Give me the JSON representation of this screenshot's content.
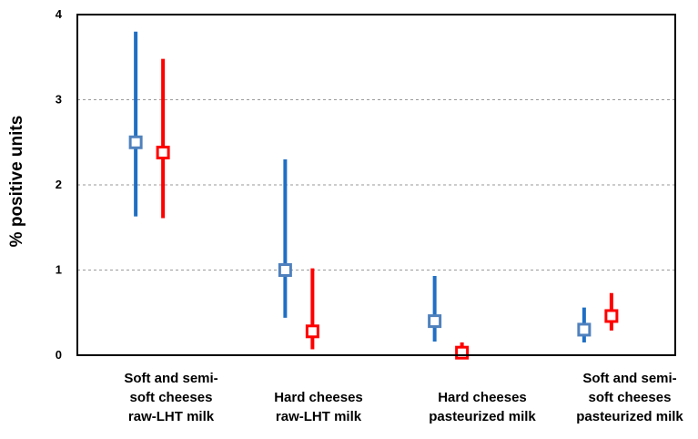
{
  "chart_data": {
    "type": "scatter",
    "subtype": "point-with-interval",
    "title": "",
    "xlabel": "",
    "ylabel": "% positive units",
    "ylim": [
      0,
      4
    ],
    "yticks": [
      0,
      1,
      2,
      3,
      4
    ],
    "grid": "horizontal dashed",
    "legend": "none",
    "categories": [
      "Soft and semi-\nsoft cheeses\nraw-LHT milk",
      "Hard cheeses\nraw-LHT milk",
      "Hard cheeses\npasteurized milk",
      "Soft and semi-\nsoft cheeses\npasteurized milk"
    ],
    "series": [
      {
        "color_line": "#1f6fc4",
        "color_marker": "#4f81bd",
        "points": [
          {
            "value": 2.5,
            "low": 1.63,
            "high": 3.8
          },
          {
            "value": 1.0,
            "low": 0.44,
            "high": 2.3
          },
          {
            "value": 0.4,
            "low": 0.16,
            "high": 0.93
          },
          {
            "value": 0.3,
            "low": 0.15,
            "high": 0.56
          }
        ]
      },
      {
        "color_line": "#ff0000",
        "color_marker": "#ff0000",
        "points": [
          {
            "value": 2.38,
            "low": 1.61,
            "high": 3.48
          },
          {
            "value": 0.28,
            "low": 0.07,
            "high": 1.02
          },
          {
            "value": 0.03,
            "low": 0.0,
            "high": 0.15
          },
          {
            "value": 0.46,
            "low": 0.29,
            "high": 0.73
          }
        ]
      }
    ]
  }
}
